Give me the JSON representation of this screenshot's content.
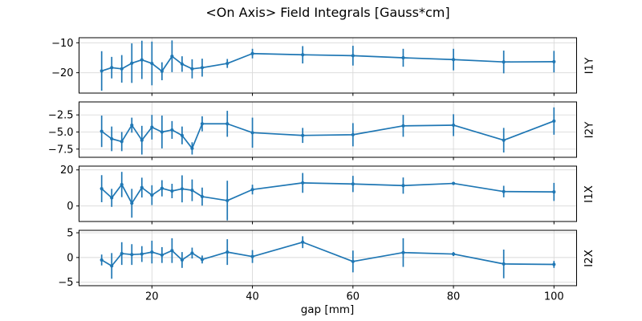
{
  "title": "<On Axis> Field Integrals [Gauss*cm]",
  "chart_data": {
    "type": "line",
    "xlabel": "gap [mm]",
    "x": [
      10,
      12,
      14,
      16,
      18,
      20,
      22,
      24,
      26,
      28,
      30,
      35,
      40,
      50,
      60,
      70,
      80,
      90,
      100
    ],
    "xlim": [
      5.5,
      104.5
    ],
    "xtick_values": [
      20,
      40,
      60,
      80,
      100
    ],
    "xtick_labels": [
      "20",
      "40",
      "60",
      "80",
      "100"
    ],
    "grid": true,
    "error_bars": true,
    "marker": "point",
    "legend": "none",
    "line_color": "#1f77b4",
    "grid_color": "#d9d9d9",
    "spine_color": "#000000",
    "subplots": [
      {
        "name": "I1Y",
        "ylim": [
          -26.8,
          -8.3
        ],
        "ytick_values": [
          -10,
          -20
        ],
        "ytick_labels": [
          "−10",
          "−20"
        ],
        "y": [
          -19.4,
          -18.3,
          -18.7,
          -16.8,
          -15.7,
          -16.9,
          -19.5,
          -14.5,
          -17.1,
          -18.7,
          -18.3,
          -16.9,
          -13.6,
          -14.0,
          -14.3,
          -15.0,
          -15.6,
          -16.4,
          -16.3
        ],
        "yerr": [
          6.6,
          3.6,
          4.6,
          6.6,
          6.4,
          7.3,
          3.0,
          5.3,
          2.6,
          3.2,
          3.0,
          1.5,
          1.6,
          2.9,
          3.3,
          3.0,
          3.6,
          3.8,
          3.6
        ]
      },
      {
        "name": "I2Y",
        "ylim": [
          -8.7,
          -0.6
        ],
        "ytick_values": [
          -2.5,
          -5.0,
          -7.5
        ],
        "ytick_labels": [
          "−2.5",
          "−5.0",
          "−7.5"
        ],
        "y": [
          -4.9,
          -6.0,
          -6.4,
          -4.0,
          -6.2,
          -4.3,
          -5.0,
          -4.7,
          -5.5,
          -7.4,
          -3.8,
          -3.8,
          -5.1,
          -5.5,
          -5.4,
          -4.1,
          -4.0,
          -6.2,
          -3.4
        ],
        "yerr": [
          2.3,
          1.8,
          1.4,
          1.1,
          2.1,
          1.8,
          2.4,
          1.3,
          1.3,
          0.9,
          1.1,
          1.9,
          2.2,
          1.1,
          1.7,
          1.6,
          1.6,
          1.8,
          2.0
        ]
      },
      {
        "name": "I1X",
        "ylim": [
          -8.6,
          22.1
        ],
        "ytick_values": [
          20,
          0
        ],
        "ytick_labels": [
          "20",
          "0"
        ],
        "y": [
          9.6,
          4.5,
          11.9,
          1.5,
          10.2,
          6.0,
          9.8,
          8.3,
          9.5,
          8.7,
          5.2,
          3.0,
          9.1,
          12.8,
          12.2,
          11.3,
          12.5,
          8.0,
          7.8
        ],
        "yerr": [
          7.5,
          5.0,
          7.0,
          8.0,
          5.5,
          5.5,
          4.5,
          4.0,
          7.5,
          6.0,
          5.0,
          11.0,
          2.7,
          5.5,
          4.5,
          4.5,
          0.8,
          3.2,
          5.0
        ]
      },
      {
        "name": "I2X",
        "ylim": [
          -5.7,
          5.5
        ],
        "ytick_values": [
          5,
          0,
          -5
        ],
        "ytick_labels": [
          "5",
          "0",
          "−5"
        ],
        "y": [
          -0.5,
          -1.7,
          0.8,
          0.6,
          0.7,
          1.1,
          0.5,
          1.4,
          -0.5,
          0.9,
          -0.4,
          1.1,
          0.2,
          3.1,
          -0.8,
          1.0,
          0.7,
          -1.3,
          -1.4
        ],
        "yerr": [
          1.1,
          2.6,
          2.3,
          2.1,
          1.6,
          2.3,
          1.6,
          2.5,
          1.6,
          1.1,
          0.8,
          2.6,
          1.3,
          1.2,
          2.2,
          2.9,
          0.4,
          2.9,
          0.7
        ]
      }
    ]
  }
}
